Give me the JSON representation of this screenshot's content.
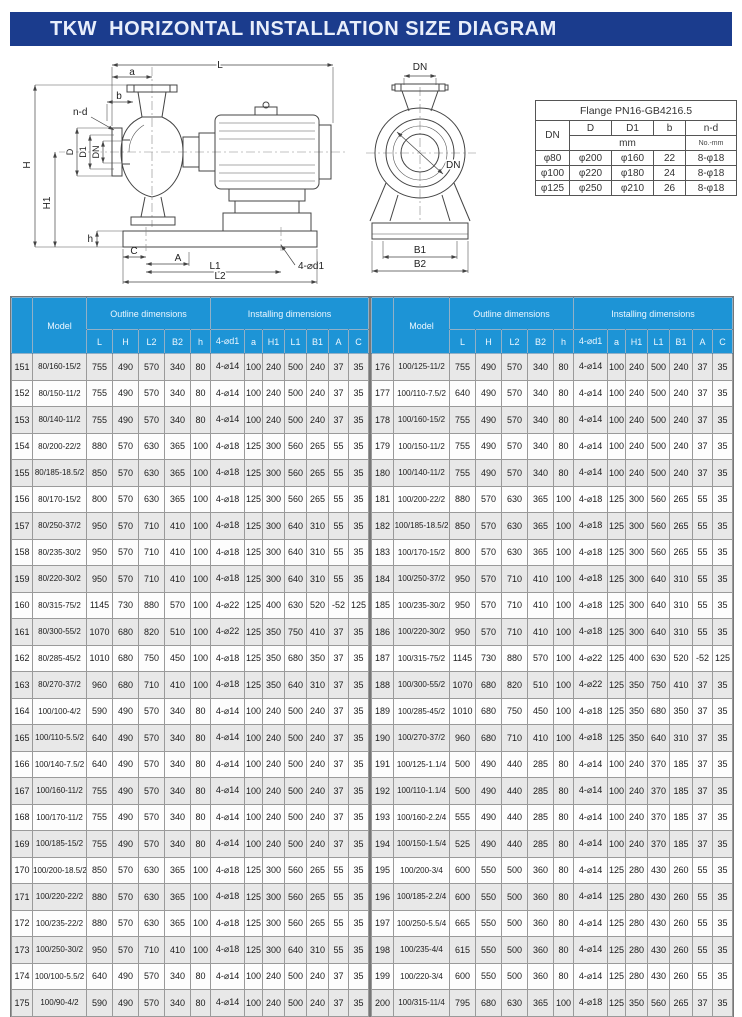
{
  "title_bar": {
    "title": "TKW  HORIZONTAL INSTALLATION SIZE DIAGRAM"
  },
  "colors": {
    "title_bar_bg": "#1b3c8d",
    "table_header_bg": "#1d94d6",
    "row_stripe": "#e8e8e8"
  },
  "diagram": {
    "side_view": {
      "L": "L",
      "a": "a",
      "b": "b",
      "n_d": "n-d",
      "D": "D",
      "D1": "D1",
      "DN": "DN",
      "H": "H",
      "H1": "H1",
      "h": "h",
      "C": "C",
      "A": "A",
      "L1": "L1",
      "L2": "L2",
      "anchor_holes": "4-⌀d1"
    },
    "front_view": {
      "DN_top": "DN",
      "DN_bore": "DN",
      "B1": "B1",
      "B2": "B2"
    }
  },
  "flange_table": {
    "title": "Flange PN16-GB4216.5",
    "dn_header": "DN",
    "d_header": "D",
    "d1_header": "D1",
    "b_header": "b",
    "nd_header": "n-d",
    "mm_unit": "mm",
    "nd_unit": "No.-mm",
    "rows": [
      [
        "φ80",
        "φ200",
        "φ160",
        "22",
        "8-φ18"
      ],
      [
        "φ100",
        "φ220",
        "φ180",
        "24",
        "8-φ18"
      ],
      [
        "φ125",
        "φ250",
        "φ210",
        "26",
        "8-φ18"
      ]
    ]
  },
  "main_table": {
    "headers": {
      "model": "Model",
      "outline": "Outline dimensions",
      "installing": "Installing dimensions",
      "outline_cols": [
        "L",
        "H",
        "L2",
        "B2",
        "h"
      ],
      "installing_cols": [
        "4-⌀d1",
        "a",
        "H1",
        "L1",
        "B1",
        "A",
        "C"
      ]
    },
    "left_rows": [
      [
        "151",
        "80/160-15/2",
        "755",
        "490",
        "570",
        "340",
        "80",
        "4-⌀14",
        "100",
        "240",
        "500",
        "240",
        "37",
        "35"
      ],
      [
        "152",
        "80/150-11/2",
        "755",
        "490",
        "570",
        "340",
        "80",
        "4-⌀14",
        "100",
        "240",
        "500",
        "240",
        "37",
        "35"
      ],
      [
        "153",
        "80/140-11/2",
        "755",
        "490",
        "570",
        "340",
        "80",
        "4-⌀14",
        "100",
        "240",
        "500",
        "240",
        "37",
        "35"
      ],
      [
        "154",
        "80/200-22/2",
        "880",
        "570",
        "630",
        "365",
        "100",
        "4-⌀18",
        "125",
        "300",
        "560",
        "265",
        "55",
        "35"
      ],
      [
        "155",
        "80/185-18.5/2",
        "850",
        "570",
        "630",
        "365",
        "100",
        "4-⌀18",
        "125",
        "300",
        "560",
        "265",
        "55",
        "35"
      ],
      [
        "156",
        "80/170-15/2",
        "800",
        "570",
        "630",
        "365",
        "100",
        "4-⌀18",
        "125",
        "300",
        "560",
        "265",
        "55",
        "35"
      ],
      [
        "157",
        "80/250-37/2",
        "950",
        "570",
        "710",
        "410",
        "100",
        "4-⌀18",
        "125",
        "300",
        "640",
        "310",
        "55",
        "35"
      ],
      [
        "158",
        "80/235-30/2",
        "950",
        "570",
        "710",
        "410",
        "100",
        "4-⌀18",
        "125",
        "300",
        "640",
        "310",
        "55",
        "35"
      ],
      [
        "159",
        "80/220-30/2",
        "950",
        "570",
        "710",
        "410",
        "100",
        "4-⌀18",
        "125",
        "300",
        "640",
        "310",
        "55",
        "35"
      ],
      [
        "160",
        "80/315-75/2",
        "1145",
        "730",
        "880",
        "570",
        "100",
        "4-⌀22",
        "125",
        "400",
        "630",
        "520",
        "-52",
        "125"
      ],
      [
        "161",
        "80/300-55/2",
        "1070",
        "680",
        "820",
        "510",
        "100",
        "4-⌀22",
        "125",
        "350",
        "750",
        "410",
        "37",
        "35"
      ],
      [
        "162",
        "80/285-45/2",
        "1010",
        "680",
        "750",
        "450",
        "100",
        "4-⌀18",
        "125",
        "350",
        "680",
        "350",
        "37",
        "35"
      ],
      [
        "163",
        "80/270-37/2",
        "960",
        "680",
        "710",
        "410",
        "100",
        "4-⌀18",
        "125",
        "350",
        "640",
        "310",
        "37",
        "35"
      ],
      [
        "164",
        "100/100-4/2",
        "590",
        "490",
        "570",
        "340",
        "80",
        "4-⌀14",
        "100",
        "240",
        "500",
        "240",
        "37",
        "35"
      ],
      [
        "165",
        "100/110-5.5/2",
        "640",
        "490",
        "570",
        "340",
        "80",
        "4-⌀14",
        "100",
        "240",
        "500",
        "240",
        "37",
        "35"
      ],
      [
        "166",
        "100/140-7.5/2",
        "640",
        "490",
        "570",
        "340",
        "80",
        "4-⌀14",
        "100",
        "240",
        "500",
        "240",
        "37",
        "35"
      ],
      [
        "167",
        "100/160-11/2",
        "755",
        "490",
        "570",
        "340",
        "80",
        "4-⌀14",
        "100",
        "240",
        "500",
        "240",
        "37",
        "35"
      ],
      [
        "168",
        "100/170-11/2",
        "755",
        "490",
        "570",
        "340",
        "80",
        "4-⌀14",
        "100",
        "240",
        "500",
        "240",
        "37",
        "35"
      ],
      [
        "169",
        "100/185-15/2",
        "755",
        "490",
        "570",
        "340",
        "80",
        "4-⌀14",
        "100",
        "240",
        "500",
        "240",
        "37",
        "35"
      ],
      [
        "170",
        "100/200-18.5/2",
        "850",
        "570",
        "630",
        "365",
        "100",
        "4-⌀18",
        "125",
        "300",
        "560",
        "265",
        "55",
        "35"
      ],
      [
        "171",
        "100/220-22/2",
        "880",
        "570",
        "630",
        "365",
        "100",
        "4-⌀18",
        "125",
        "300",
        "560",
        "265",
        "55",
        "35"
      ],
      [
        "172",
        "100/235-22/2",
        "880",
        "570",
        "630",
        "365",
        "100",
        "4-⌀18",
        "125",
        "300",
        "560",
        "265",
        "55",
        "35"
      ],
      [
        "173",
        "100/250-30/2",
        "950",
        "570",
        "710",
        "410",
        "100",
        "4-⌀18",
        "125",
        "300",
        "640",
        "310",
        "55",
        "35"
      ],
      [
        "174",
        "100/100-5.5/2",
        "640",
        "490",
        "570",
        "340",
        "80",
        "4-⌀14",
        "100",
        "240",
        "500",
        "240",
        "37",
        "35"
      ],
      [
        "175",
        "100/90-4/2",
        "590",
        "490",
        "570",
        "340",
        "80",
        "4-⌀14",
        "100",
        "240",
        "500",
        "240",
        "37",
        "35"
      ]
    ],
    "right_rows": [
      [
        "176",
        "100/125-11/2",
        "755",
        "490",
        "570",
        "340",
        "80",
        "4-⌀14",
        "100",
        "240",
        "500",
        "240",
        "37",
        "35"
      ],
      [
        "177",
        "100/110-7.5/2",
        "640",
        "490",
        "570",
        "340",
        "80",
        "4-⌀14",
        "100",
        "240",
        "500",
        "240",
        "37",
        "35"
      ],
      [
        "178",
        "100/160-15/2",
        "755",
        "490",
        "570",
        "340",
        "80",
        "4-⌀14",
        "100",
        "240",
        "500",
        "240",
        "37",
        "35"
      ],
      [
        "179",
        "100/150-11/2",
        "755",
        "490",
        "570",
        "340",
        "80",
        "4-⌀14",
        "100",
        "240",
        "500",
        "240",
        "37",
        "35"
      ],
      [
        "180",
        "100/140-11/2",
        "755",
        "490",
        "570",
        "340",
        "80",
        "4-⌀14",
        "100",
        "240",
        "500",
        "240",
        "37",
        "35"
      ],
      [
        "181",
        "100/200-22/2",
        "880",
        "570",
        "630",
        "365",
        "100",
        "4-⌀18",
        "125",
        "300",
        "560",
        "265",
        "55",
        "35"
      ],
      [
        "182",
        "100/185-18.5/2",
        "850",
        "570",
        "630",
        "365",
        "100",
        "4-⌀18",
        "125",
        "300",
        "560",
        "265",
        "55",
        "35"
      ],
      [
        "183",
        "100/170-15/2",
        "800",
        "570",
        "630",
        "365",
        "100",
        "4-⌀18",
        "125",
        "300",
        "560",
        "265",
        "55",
        "35"
      ],
      [
        "184",
        "100/250-37/2",
        "950",
        "570",
        "710",
        "410",
        "100",
        "4-⌀18",
        "125",
        "300",
        "640",
        "310",
        "55",
        "35"
      ],
      [
        "185",
        "100/235-30/2",
        "950",
        "570",
        "710",
        "410",
        "100",
        "4-⌀18",
        "125",
        "300",
        "640",
        "310",
        "55",
        "35"
      ],
      [
        "186",
        "100/220-30/2",
        "950",
        "570",
        "710",
        "410",
        "100",
        "4-⌀18",
        "125",
        "300",
        "640",
        "310",
        "55",
        "35"
      ],
      [
        "187",
        "100/315-75/2",
        "1145",
        "730",
        "880",
        "570",
        "100",
        "4-⌀22",
        "125",
        "400",
        "630",
        "520",
        "-52",
        "125"
      ],
      [
        "188",
        "100/300-55/2",
        "1070",
        "680",
        "820",
        "510",
        "100",
        "4-⌀22",
        "125",
        "350",
        "750",
        "410",
        "37",
        "35"
      ],
      [
        "189",
        "100/285-45/2",
        "1010",
        "680",
        "750",
        "450",
        "100",
        "4-⌀18",
        "125",
        "350",
        "680",
        "350",
        "37",
        "35"
      ],
      [
        "190",
        "100/270-37/2",
        "960",
        "680",
        "710",
        "410",
        "100",
        "4-⌀18",
        "125",
        "350",
        "640",
        "310",
        "37",
        "35"
      ],
      [
        "191",
        "100/125-1.1/4",
        "500",
        "490",
        "440",
        "285",
        "80",
        "4-⌀14",
        "100",
        "240",
        "370",
        "185",
        "37",
        "35"
      ],
      [
        "192",
        "100/110-1.1/4",
        "500",
        "490",
        "440",
        "285",
        "80",
        "4-⌀14",
        "100",
        "240",
        "370",
        "185",
        "37",
        "35"
      ],
      [
        "193",
        "100/160-2.2/4",
        "555",
        "490",
        "440",
        "285",
        "80",
        "4-⌀14",
        "100",
        "240",
        "370",
        "185",
        "37",
        "35"
      ],
      [
        "194",
        "100/150-1.5/4",
        "525",
        "490",
        "440",
        "285",
        "80",
        "4-⌀14",
        "100",
        "240",
        "370",
        "185",
        "37",
        "35"
      ],
      [
        "195",
        "100/200-3/4",
        "600",
        "550",
        "500",
        "360",
        "80",
        "4-⌀14",
        "125",
        "280",
        "430",
        "260",
        "55",
        "35"
      ],
      [
        "196",
        "100/185-2.2/4",
        "600",
        "550",
        "500",
        "360",
        "80",
        "4-⌀14",
        "125",
        "280",
        "430",
        "260",
        "55",
        "35"
      ],
      [
        "197",
        "100/250-5.5/4",
        "665",
        "550",
        "500",
        "360",
        "80",
        "4-⌀14",
        "125",
        "280",
        "430",
        "260",
        "55",
        "35"
      ],
      [
        "198",
        "100/235-4/4",
        "615",
        "550",
        "500",
        "360",
        "80",
        "4-⌀14",
        "125",
        "280",
        "430",
        "260",
        "55",
        "35"
      ],
      [
        "199",
        "100/220-3/4",
        "600",
        "550",
        "500",
        "360",
        "80",
        "4-⌀14",
        "125",
        "280",
        "430",
        "260",
        "55",
        "35"
      ],
      [
        "200",
        "100/315-11/4",
        "795",
        "680",
        "630",
        "365",
        "100",
        "4-⌀18",
        "125",
        "350",
        "560",
        "265",
        "37",
        "35"
      ]
    ]
  }
}
